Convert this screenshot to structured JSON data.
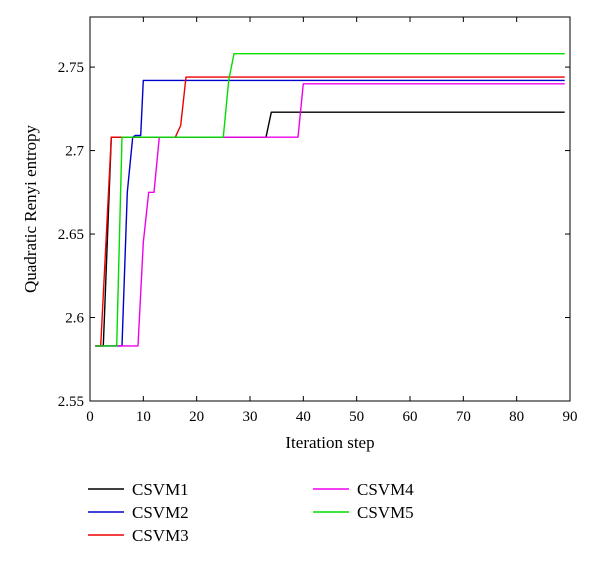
{
  "chart_data": {
    "type": "line",
    "title": "",
    "xlabel": "Iteration step",
    "ylabel": "Quadratic Renyi entropy",
    "xlim": [
      0,
      90
    ],
    "ylim": [
      2.55,
      2.78
    ],
    "xticks": [
      0,
      10,
      20,
      30,
      40,
      50,
      60,
      70,
      80,
      90
    ],
    "yticks": [
      2.55,
      2.6,
      2.65,
      2.7,
      2.75
    ],
    "ytick_labels": [
      "2.55",
      "2.6",
      "2.65",
      "2.7",
      "2.75"
    ],
    "grid": false,
    "legend_position": "bottom",
    "series": [
      {
        "name": "CSVM1",
        "color": "#000000",
        "x": [
          1,
          2.5,
          4,
          33,
          34,
          89
        ],
        "y": [
          2.583,
          2.583,
          2.708,
          2.708,
          2.723,
          2.723
        ]
      },
      {
        "name": "CSVM2",
        "color": "#0000cc",
        "x": [
          1,
          6,
          7,
          8,
          8.5,
          9.5,
          10,
          89
        ],
        "y": [
          2.583,
          2.583,
          2.675,
          2.708,
          2.709,
          2.709,
          2.742,
          2.742
        ]
      },
      {
        "name": "CSVM3",
        "color": "#ee0000",
        "x": [
          1,
          2,
          4,
          16,
          17,
          18,
          89
        ],
        "y": [
          2.583,
          2.583,
          2.708,
          2.708,
          2.715,
          2.744,
          2.744
        ]
      },
      {
        "name": "CSVM4",
        "color": "#ee00ee",
        "x": [
          1,
          9,
          10,
          11,
          12,
          13,
          39,
          40,
          89
        ],
        "y": [
          2.583,
          2.583,
          2.645,
          2.675,
          2.675,
          2.708,
          2.708,
          2.74,
          2.74
        ]
      },
      {
        "name": "CSVM5",
        "color": "#00dd00",
        "x": [
          1,
          5,
          6,
          25,
          26,
          27,
          89
        ],
        "y": [
          2.583,
          2.583,
          2.708,
          2.708,
          2.742,
          2.758,
          2.758
        ]
      }
    ]
  }
}
